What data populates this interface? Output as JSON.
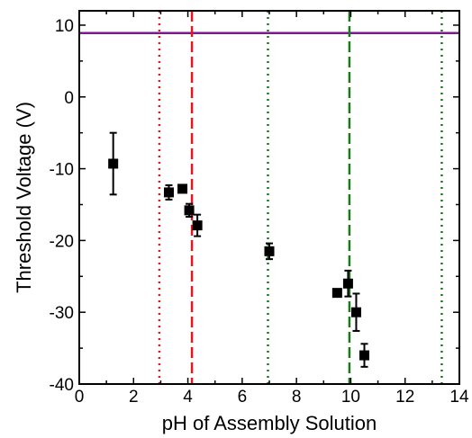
{
  "chart_data": {
    "type": "scatter",
    "xlabel": "pH of Assembly Solution",
    "ylabel": "Threshold Voltage (V)",
    "xlim": [
      0,
      14
    ],
    "ylim": [
      -40,
      12
    ],
    "xticks": [
      0,
      2,
      4,
      6,
      8,
      10,
      12,
      14
    ],
    "yticks": [
      -40,
      -30,
      -20,
      -10,
      0,
      10
    ],
    "xtick_labels": [
      "0",
      "2",
      "4",
      "6",
      "8",
      "10",
      "12",
      "14"
    ],
    "ytick_labels": [
      "-40",
      "-30",
      "-20",
      "-10",
      "0",
      "10"
    ],
    "grid": false,
    "points": [
      {
        "x": 1.25,
        "y": -9.3,
        "err": 4.3
      },
      {
        "x": 3.3,
        "y": -13.3,
        "err": 1.0
      },
      {
        "x": 3.8,
        "y": -12.8,
        "err": 0.5
      },
      {
        "x": 4.05,
        "y": -15.8,
        "err": 0.9
      },
      {
        "x": 4.35,
        "y": -17.9,
        "err": 1.5
      },
      {
        "x": 7.0,
        "y": -21.5,
        "err": 1.1
      },
      {
        "x": 9.5,
        "y": -27.3,
        "err": 0.4
      },
      {
        "x": 9.9,
        "y": -26.0,
        "err": 1.8
      },
      {
        "x": 10.2,
        "y": -30.0,
        "err": 2.6
      },
      {
        "x": 10.5,
        "y": -36.0,
        "err": 1.6
      }
    ],
    "reference_lines": [
      {
        "orientation": "horizontal",
        "value": 8.9,
        "color": "#7a1a8c",
        "style": "solid"
      },
      {
        "orientation": "vertical",
        "value": 2.95,
        "color": "#e0191e",
        "style": "dotted"
      },
      {
        "orientation": "vertical",
        "value": 4.15,
        "color": "#e0191e",
        "style": "dashed"
      },
      {
        "orientation": "vertical",
        "value": 6.95,
        "color": "#1a7a1a",
        "style": "dotted"
      },
      {
        "orientation": "vertical",
        "value": 9.95,
        "color": "#1a7a1a",
        "style": "dashed"
      },
      {
        "orientation": "vertical",
        "value": 13.35,
        "color": "#1a7a1a",
        "style": "dotted"
      }
    ],
    "marker_color": "#000000"
  }
}
